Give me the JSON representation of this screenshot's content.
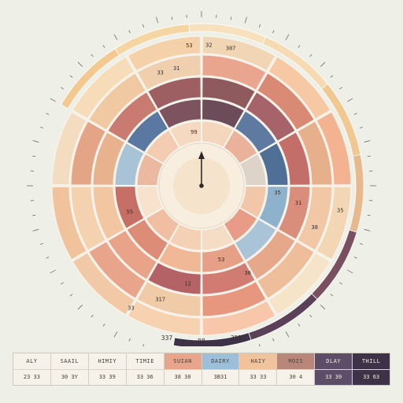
{
  "chart_data": {
    "type": "radial-segmented",
    "center_label": "",
    "rings": [
      {
        "segments": [
          {
            "value": "",
            "color": "#f0d6b4"
          },
          {
            "value": "",
            "color": "#f6c9a4"
          },
          {
            "value": "",
            "color": "#f3b390"
          },
          {
            "value": "",
            "color": "#f3d7b5"
          },
          {
            "value": "",
            "color": "#f6e4c9"
          },
          {
            "value": "",
            "color": "#f8c6a8"
          },
          {
            "value": "",
            "color": "#f6d2b0"
          },
          {
            "value": "",
            "color": "#f2c9a6"
          },
          {
            "value": "",
            "color": "#f0c39c"
          },
          {
            "value": "",
            "color": "#f4dcc0"
          },
          {
            "value": "",
            "color": "#f6dcb8"
          },
          {
            "value": "",
            "color": "#f4d1a9"
          }
        ]
      },
      {
        "segments": [
          {
            "value": "33",
            "color": "#e9a58e"
          },
          {
            "value": "31",
            "color": "#d98a75"
          },
          {
            "value": "",
            "color": "#e7b08c"
          },
          {
            "value": "",
            "color": "#f1c7a5"
          },
          {
            "value": "",
            "color": "#eebd9a"
          },
          {
            "value": "",
            "color": "#e8977f"
          },
          {
            "value": "",
            "color": "#f0cba8"
          },
          {
            "value": "",
            "color": "#e9a58b"
          },
          {
            "value": "",
            "color": "#f4d2b0"
          },
          {
            "value": "",
            "color": "#e4a586"
          },
          {
            "value": "",
            "color": "#f0c9a2"
          },
          {
            "value": "",
            "color": "#efcfae"
          }
        ]
      },
      {
        "segments": [
          {
            "value": "",
            "color": "#8f5a5e"
          },
          {
            "value": "",
            "color": "#a7636a"
          },
          {
            "value": "",
            "color": "#c46e69"
          },
          {
            "value": "",
            "color": "#d88e7b"
          },
          {
            "value": "",
            "color": "#e6a88a"
          },
          {
            "value": "",
            "color": "#d07c72"
          },
          {
            "value": "",
            "color": "#b56266"
          },
          {
            "value": "",
            "color": "#e8a389"
          },
          {
            "value": "",
            "color": "#f3c6a2"
          },
          {
            "value": "",
            "color": "#e8b28f"
          },
          {
            "value": "",
            "color": "#c97a71"
          },
          {
            "value": "",
            "color": "#9d5f62"
          }
        ]
      },
      {
        "segments": [
          {
            "value": "",
            "color": "#6d4c5a"
          },
          {
            "value": "",
            "color": "#5e7aa0"
          },
          {
            "value": "",
            "color": "#4f6f97"
          },
          {
            "value": "",
            "color": "#8fb2cc"
          },
          {
            "value": "",
            "color": "#a9c4d6"
          },
          {
            "value": "",
            "color": "#e7a088"
          },
          {
            "value": "",
            "color": "#f1b898"
          },
          {
            "value": "",
            "color": "#dd8d77"
          },
          {
            "value": "",
            "color": "#c56f66"
          },
          {
            "value": "",
            "color": "#a8c3d6"
          },
          {
            "value": "",
            "color": "#5a78a2"
          },
          {
            "value": "",
            "color": "#7d5360"
          }
        ]
      },
      {
        "segments": [
          {
            "value": "",
            "color": "#f4d6bc"
          },
          {
            "value": "",
            "color": "#eab29a"
          },
          {
            "value": "",
            "color": "#ddd3c8"
          },
          {
            "value": "",
            "color": "#f1c6a9"
          },
          {
            "value": "",
            "color": "#e89b86"
          },
          {
            "value": "",
            "color": "#f5dcc4"
          },
          {
            "value": "",
            "color": "#f4d0b4"
          },
          {
            "value": "",
            "color": "#f0bfa2"
          },
          {
            "value": "",
            "color": "#f7e3cd"
          },
          {
            "value": "",
            "color": "#ebb8a0"
          },
          {
            "value": "",
            "color": "#f3ccb1"
          },
          {
            "value": "",
            "color": "#f5d9c1"
          }
        ]
      }
    ],
    "outer_arc": [
      {
        "color": "#f3c98f"
      },
      {
        "color": "#f5d6a3"
      },
      {
        "color": "#f7e1bd"
      },
      {
        "color": "#f6dbb2"
      },
      {
        "color": "#f1c792"
      },
      {
        "color": "#e8b98c"
      },
      {
        "color": "#7a5060"
      },
      {
        "color": "#5b4158"
      },
      {
        "color": "#3e3248"
      }
    ],
    "labels": [
      {
        "text": "53",
        "ring": 0,
        "angle": -5
      },
      {
        "text": "32",
        "ring": 0,
        "angle": 3
      },
      {
        "text": "307",
        "ring": 0,
        "angle": 12
      },
      {
        "text": "33",
        "ring": 1,
        "angle": -20
      },
      {
        "text": "31",
        "ring": 1,
        "angle": -12
      },
      {
        "text": "99",
        "ring": 4,
        "angle": -8
      },
      {
        "text": "55",
        "ring": 3,
        "angle": 250
      },
      {
        "text": "35",
        "ring": 3,
        "angle": 95
      },
      {
        "text": "31",
        "ring": 2,
        "angle": 100
      },
      {
        "text": "30",
        "ring": 2,
        "angle": 152
      },
      {
        "text": "53",
        "ring": 3,
        "angle": 165
      },
      {
        "text": "12",
        "ring": 2,
        "angle": 188
      },
      {
        "text": "317",
        "ring": 1,
        "angle": 200
      },
      {
        "text": "33",
        "ring": 0,
        "angle": 210
      },
      {
        "text": "38",
        "ring": 1,
        "angle": 110
      },
      {
        "text": "35",
        "ring": 0,
        "angle": 100
      }
    ],
    "bottom_labels": {
      "left": "337",
      "right": "357",
      "bottom": "98"
    },
    "legend": [
      {
        "label": "ALY",
        "value": "23 33",
        "color": "#f6f2ea"
      },
      {
        "label": "SAAIL",
        "value": "30 3Y",
        "color": "#f6f2ea"
      },
      {
        "label": "HIMIY",
        "value": "33 39",
        "color": "#f6f2ea"
      },
      {
        "label": "TIMIE",
        "value": "33 36",
        "color": "#f6f2ea"
      },
      {
        "label": "SUIAN",
        "value": "38 30",
        "color": "#e9a58b"
      },
      {
        "label": "DAIRY",
        "value": "3B31",
        "color": "#9cbfd9"
      },
      {
        "label": "HAIY",
        "value": "33 33",
        "color": "#f0c39c"
      },
      {
        "label": "MOIS",
        "value": "30 4",
        "color": "#b8877a"
      },
      {
        "label": "DLAY",
        "value": "33 30",
        "color": "#5e4d69"
      },
      {
        "label": "THILL",
        "value": "33 63",
        "color": "#3e3248"
      }
    ]
  }
}
